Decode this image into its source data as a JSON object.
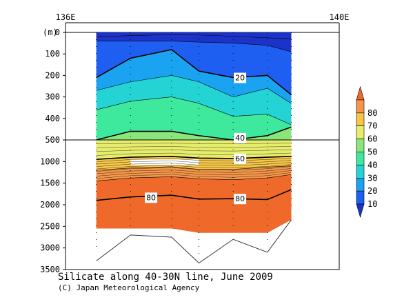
{
  "chart_data": {
    "type": "heatmap",
    "title": "Silicate along 40-30N line, June 2009",
    "credit": "(C) Japan Meteorological Agency",
    "x_axis": {
      "tick_labels": [
        "136E",
        "140E"
      ],
      "range": [
        136,
        140
      ]
    },
    "y_axis": {
      "unit_label": "(m)",
      "inverted": true,
      "upper_panel": {
        "ticks": [
          0,
          100,
          200,
          300,
          400,
          500
        ],
        "range": [
          0,
          500
        ]
      },
      "lower_panel": {
        "ticks": [
          500,
          1000,
          1500,
          2000,
          2500,
          3000,
          3500
        ],
        "range": [
          500,
          3500
        ]
      }
    },
    "colorbar": {
      "levels": [
        10,
        20,
        30,
        40,
        50,
        60,
        70,
        80
      ],
      "colors": [
        "#1b33c9",
        "#1e5ef0",
        "#1aa3f0",
        "#24d3d3",
        "#3ee89c",
        "#8ae67a",
        "#e6ec6c",
        "#f6c64a",
        "#f3964a",
        "#ef6a2a"
      ]
    },
    "contour_labels": [
      {
        "value": "20",
        "x": 138.55,
        "depth": 210
      },
      {
        "value": "40",
        "x": 138.55,
        "depth": 490
      },
      {
        "value": "60",
        "x": 138.55,
        "depth": 930
      },
      {
        "value": "80",
        "x": 137.25,
        "depth": 1830
      },
      {
        "value": "80",
        "x": 138.55,
        "depth": 1860
      }
    ],
    "stations_lon": [
      136.45,
      136.95,
      137.55,
      137.95,
      138.45,
      138.95,
      139.3
    ],
    "bottom_depth": [
      3300,
      2700,
      2750,
      3350,
      2800,
      3100,
      2350
    ]
  }
}
